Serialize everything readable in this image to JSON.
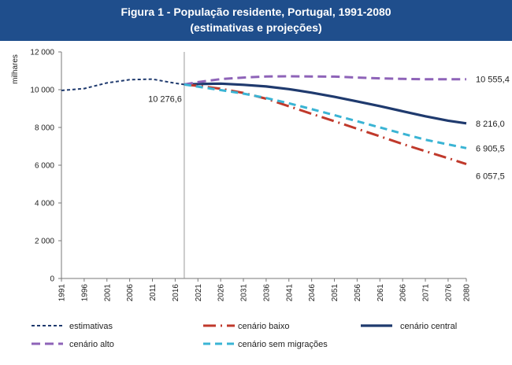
{
  "header": {
    "title_line1": "Figura 1 - População residente, Portugal, 1991-2080",
    "title_line2": "(estimativas e projeções)"
  },
  "chart_data": {
    "type": "line",
    "ylabel": "milhares",
    "ylim": [
      0,
      12000
    ],
    "yticks": [
      0,
      2000,
      4000,
      6000,
      8000,
      10000,
      12000
    ],
    "ytick_labels": [
      "0",
      "2 000",
      "4 000",
      "6 000",
      "8 000",
      "10 000",
      "12 000"
    ],
    "xlim": [
      1991,
      2080
    ],
    "xticks": [
      1991,
      1996,
      2001,
      2006,
      2011,
      2016,
      2021,
      2026,
      2031,
      2036,
      2041,
      2046,
      2051,
      2056,
      2061,
      2066,
      2071,
      2076,
      2080
    ],
    "grid": false,
    "legend_position": "bottom",
    "colors": {
      "estimativas": "#1f3a6e",
      "baixo": "#c0392b",
      "central": "#1f3a6e",
      "alto": "#8e63b8",
      "sem_migracoes": "#3ab4d4",
      "axis": "#777777"
    },
    "annotations": [
      {
        "label": "10 276,6",
        "x": 2018,
        "y": 10276.6
      },
      {
        "label": "10 555,4",
        "x": 2080,
        "y": 10555.4
      },
      {
        "label": "8 216,0",
        "x": 2080,
        "y": 8216.0
      },
      {
        "label": "6 905,5",
        "x": 2080,
        "y": 6905.5
      },
      {
        "label": "6 057,5",
        "x": 2080,
        "y": 6057.5
      }
    ],
    "series": [
      {
        "name": "estimativas",
        "key": "estimativas",
        "x": [
          1991,
          1996,
          2001,
          2006,
          2011,
          2016,
          2018
        ],
        "y": [
          9960,
          10060,
          10360,
          10530,
          10560,
          10340,
          10276.6
        ]
      },
      {
        "name": "cenário central",
        "key": "central",
        "x": [
          2018,
          2021,
          2026,
          2031,
          2036,
          2041,
          2046,
          2051,
          2056,
          2061,
          2066,
          2071,
          2076,
          2080
        ],
        "y": [
          10276.6,
          10300,
          10320,
          10260,
          10170,
          10030,
          9840,
          9620,
          9380,
          9130,
          8860,
          8590,
          8360,
          8216.0
        ]
      },
      {
        "name": "cenário baixo",
        "key": "baixo",
        "x": [
          2018,
          2021,
          2026,
          2031,
          2036,
          2041,
          2046,
          2051,
          2056,
          2061,
          2066,
          2071,
          2076,
          2080
        ],
        "y": [
          10276.6,
          10200,
          10050,
          9830,
          9520,
          9120,
          8720,
          8330,
          7930,
          7530,
          7120,
          6740,
          6370,
          6057.5
        ]
      },
      {
        "name": "cenário alto",
        "key": "alto",
        "x": [
          2018,
          2021,
          2026,
          2031,
          2036,
          2041,
          2046,
          2051,
          2056,
          2061,
          2066,
          2071,
          2076,
          2080
        ],
        "y": [
          10276.6,
          10400,
          10560,
          10640,
          10700,
          10710,
          10700,
          10690,
          10640,
          10600,
          10570,
          10550,
          10550,
          10555.4
        ]
      },
      {
        "name": "cenário sem migrações",
        "key": "sem_migracoes",
        "x": [
          2018,
          2021,
          2026,
          2031,
          2036,
          2041,
          2046,
          2051,
          2056,
          2061,
          2066,
          2071,
          2076,
          2080
        ],
        "y": [
          10276.6,
          10160,
          9980,
          9790,
          9560,
          9280,
          8970,
          8650,
          8330,
          8000,
          7670,
          7350,
          7100,
          6905.5
        ]
      }
    ],
    "legend": [
      {
        "label": "estimativas",
        "key": "estimativas"
      },
      {
        "label": "cenário baixo",
        "key": "baixo"
      },
      {
        "label": "cenário central",
        "key": "central"
      },
      {
        "label": "cenário alto",
        "key": "alto"
      },
      {
        "label": "cenário sem migrações",
        "key": "sem_migracoes"
      }
    ]
  }
}
